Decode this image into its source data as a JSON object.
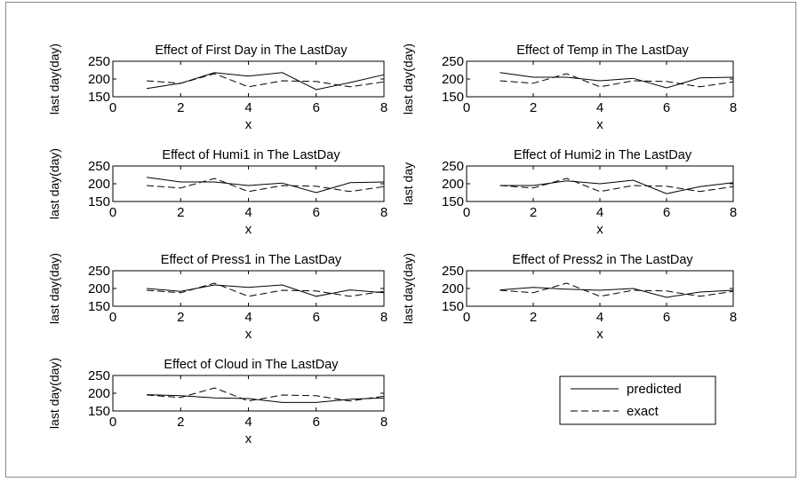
{
  "figure": {
    "frame_color": "#8a8a8a",
    "line_color": "#000000"
  },
  "chart_data": [
    {
      "type": "line",
      "title": "Effect of First Day in The LastDay",
      "xlabel": "x",
      "ylabel": "last day(day)",
      "xlim": [
        0,
        8
      ],
      "ylim": [
        150,
        250
      ],
      "xticks": [
        "0",
        "2",
        "4",
        "6",
        "8"
      ],
      "yticks": [
        "150",
        "200",
        "250"
      ],
      "grid": false,
      "x": [
        1,
        2,
        3,
        4,
        5,
        6,
        7,
        8
      ],
      "series": [
        {
          "name": "predicted",
          "style": "solid",
          "values": [
            173,
            188,
            218,
            208,
            218,
            170,
            190,
            212
          ]
        },
        {
          "name": "exact",
          "style": "dashed",
          "values": [
            195,
            188,
            215,
            178,
            195,
            193,
            178,
            192
          ]
        }
      ]
    },
    {
      "type": "line",
      "title": "Effect of Temp in The LastDay",
      "xlabel": "x",
      "ylabel": "last day(day)",
      "xlim": [
        0,
        8
      ],
      "ylim": [
        150,
        250
      ],
      "xticks": [
        "0",
        "2",
        "4",
        "6",
        "8"
      ],
      "yticks": [
        "150",
        "200",
        "250"
      ],
      "grid": false,
      "x": [
        1,
        2,
        3,
        4,
        5,
        6,
        7,
        8
      ],
      "series": [
        {
          "name": "predicted",
          "style": "solid",
          "values": [
            218,
            205,
            205,
            195,
            202,
            175,
            203,
            205
          ]
        },
        {
          "name": "exact",
          "style": "dashed",
          "values": [
            195,
            188,
            215,
            178,
            195,
            193,
            178,
            192
          ]
        }
      ]
    },
    {
      "type": "line",
      "title": "Effect of Humi1 in The LastDay",
      "xlabel": "x",
      "ylabel": "last day(day)",
      "xlim": [
        0,
        8
      ],
      "ylim": [
        150,
        250
      ],
      "xticks": [
        "0",
        "2",
        "4",
        "6",
        "8"
      ],
      "yticks": [
        "150",
        "200",
        "250"
      ],
      "grid": false,
      "x": [
        1,
        2,
        3,
        4,
        5,
        6,
        7,
        8
      ],
      "series": [
        {
          "name": "predicted",
          "style": "solid",
          "values": [
            218,
            205,
            205,
            195,
            202,
            175,
            203,
            205
          ]
        },
        {
          "name": "exact",
          "style": "dashed",
          "values": [
            195,
            188,
            215,
            178,
            195,
            193,
            178,
            192
          ]
        }
      ]
    },
    {
      "type": "line",
      "title": "Effect of Humi2 in The LastDay",
      "xlabel": "x",
      "ylabel": "last day",
      "xlim": [
        0,
        8
      ],
      "ylim": [
        150,
        250
      ],
      "xticks": [
        "0",
        "2",
        "4",
        "6",
        "8"
      ],
      "yticks": [
        "150",
        "200",
        "250"
      ],
      "grid": false,
      "x": [
        1,
        2,
        3,
        4,
        5,
        6,
        7,
        8
      ],
      "series": [
        {
          "name": "predicted",
          "style": "solid",
          "values": [
            195,
            195,
            208,
            200,
            210,
            172,
            192,
            203
          ]
        },
        {
          "name": "exact",
          "style": "dashed",
          "values": [
            195,
            188,
            215,
            178,
            195,
            193,
            178,
            192
          ]
        }
      ]
    },
    {
      "type": "line",
      "title": "Effect of Press1 in The LastDay",
      "xlabel": "x",
      "ylabel": "last day(day)",
      "xlim": [
        0,
        8
      ],
      "ylim": [
        150,
        250
      ],
      "xticks": [
        "0",
        "2",
        "4",
        "6",
        "8"
      ],
      "yticks": [
        "150",
        "200",
        "250"
      ],
      "grid": false,
      "x": [
        1,
        2,
        3,
        4,
        5,
        6,
        7,
        8
      ],
      "series": [
        {
          "name": "predicted",
          "style": "solid",
          "values": [
            200,
            192,
            210,
            203,
            210,
            178,
            196,
            188
          ]
        },
        {
          "name": "exact",
          "style": "dashed",
          "values": [
            195,
            188,
            215,
            178,
            195,
            193,
            178,
            192
          ]
        }
      ]
    },
    {
      "type": "line",
      "title": "Effect of Press2 in The LastDay",
      "xlabel": "x",
      "ylabel": "last day(day)",
      "xlim": [
        0,
        8
      ],
      "ylim": [
        150,
        250
      ],
      "xticks": [
        "0",
        "2",
        "4",
        "6",
        "8"
      ],
      "yticks": [
        "150",
        "200",
        "250"
      ],
      "grid": false,
      "x": [
        1,
        2,
        3,
        4,
        5,
        6,
        7,
        8
      ],
      "series": [
        {
          "name": "predicted",
          "style": "solid",
          "values": [
            196,
            203,
            198,
            195,
            200,
            175,
            190,
            195
          ]
        },
        {
          "name": "exact",
          "style": "dashed",
          "values": [
            195,
            188,
            215,
            178,
            195,
            193,
            178,
            192
          ]
        }
      ]
    },
    {
      "type": "line",
      "title": "Effect of Cloud in The LastDay",
      "xlabel": "x",
      "ylabel": "last day(day)",
      "xlim": [
        0,
        8
      ],
      "ylim": [
        150,
        250
      ],
      "xticks": [
        "0",
        "2",
        "4",
        "6",
        "8"
      ],
      "yticks": [
        "150",
        "200",
        "250"
      ],
      "grid": false,
      "x": [
        1,
        2,
        3,
        4,
        5,
        6,
        7,
        8
      ],
      "series": [
        {
          "name": "predicted",
          "style": "solid",
          "values": [
            196,
            193,
            187,
            185,
            174,
            174,
            183,
            187
          ]
        },
        {
          "name": "exact",
          "style": "dashed",
          "values": [
            195,
            188,
            215,
            178,
            195,
            193,
            178,
            192
          ]
        }
      ]
    }
  ],
  "legend": {
    "placement": "bottom-right",
    "entries": [
      {
        "label": "predicted",
        "style": "solid"
      },
      {
        "label": "exact",
        "style": "dashed"
      }
    ]
  }
}
